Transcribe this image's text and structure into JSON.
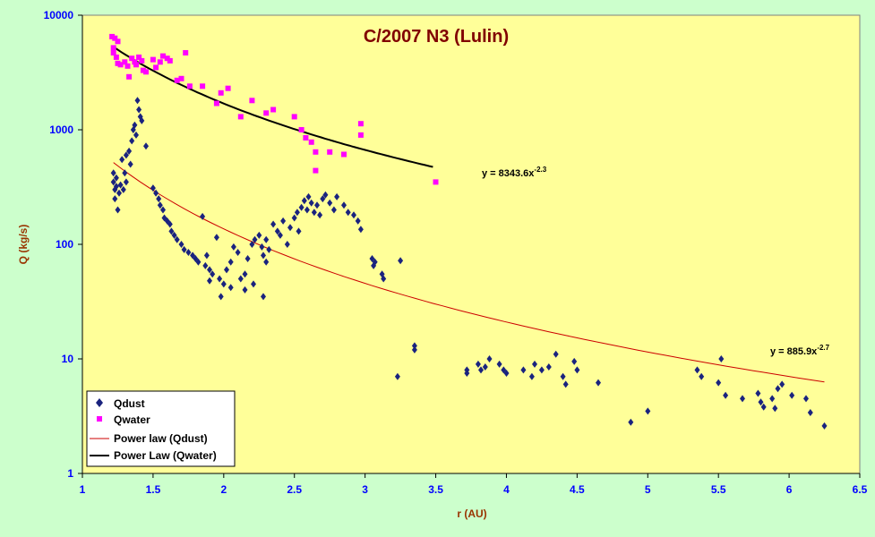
{
  "chart_data": {
    "type": "scatter",
    "title": "C/2007 N3 (Lulin)",
    "xlabel": "r (AU)",
    "ylabel": "Q (kg/s)",
    "xlim": [
      1,
      6.5
    ],
    "ylim": [
      1,
      10000
    ],
    "yscale": "log",
    "x_ticks": [
      "1",
      "1.5",
      "2",
      "2.5",
      "3",
      "3.5",
      "4",
      "4.5",
      "5",
      "5.5",
      "6",
      "6.5"
    ],
    "y_ticks": [
      "1",
      "10",
      "100",
      "1000",
      "10000"
    ],
    "grid": false,
    "legend_position": "bottom-left",
    "colors": {
      "plot_background": "#ffff99",
      "page_background": "#ccffcc",
      "qdust": "#1a237e",
      "qwater": "#ff00ff",
      "powerlaw_dust": "#cc0000",
      "powerlaw_water": "#000000"
    },
    "series": [
      {
        "name": "Qdust",
        "marker": "diamond",
        "color": "#1a237e",
        "points": [
          [
            1.22,
            420
          ],
          [
            1.22,
            350
          ],
          [
            1.23,
            300
          ],
          [
            1.23,
            250
          ],
          [
            1.24,
            380
          ],
          [
            1.24,
            320
          ],
          [
            1.25,
            200
          ],
          [
            1.26,
            280
          ],
          [
            1.27,
            330
          ],
          [
            1.28,
            550
          ],
          [
            1.29,
            300
          ],
          [
            1.3,
            420
          ],
          [
            1.31,
            350
          ],
          [
            1.31,
            600
          ],
          [
            1.33,
            650
          ],
          [
            1.34,
            500
          ],
          [
            1.35,
            800
          ],
          [
            1.36,
            1000
          ],
          [
            1.37,
            1100
          ],
          [
            1.38,
            900
          ],
          [
            1.39,
            1800
          ],
          [
            1.4,
            1500
          ],
          [
            1.41,
            1300
          ],
          [
            1.42,
            1200
          ],
          [
            1.45,
            720
          ],
          [
            1.5,
            310
          ],
          [
            1.52,
            280
          ],
          [
            1.54,
            250
          ],
          [
            1.55,
            220
          ],
          [
            1.57,
            200
          ],
          [
            1.58,
            170
          ],
          [
            1.6,
            160
          ],
          [
            1.62,
            150
          ],
          [
            1.63,
            130
          ],
          [
            1.65,
            120
          ],
          [
            1.67,
            110
          ],
          [
            1.7,
            100
          ],
          [
            1.72,
            90
          ],
          [
            1.75,
            85
          ],
          [
            1.78,
            80
          ],
          [
            1.8,
            75
          ],
          [
            1.82,
            70
          ],
          [
            1.85,
            175
          ],
          [
            1.87,
            65
          ],
          [
            1.88,
            80
          ],
          [
            1.9,
            60
          ],
          [
            1.92,
            55
          ],
          [
            1.95,
            115
          ],
          [
            1.97,
            50
          ],
          [
            2.0,
            45
          ],
          [
            2.02,
            60
          ],
          [
            2.05,
            70
          ],
          [
            2.07,
            95
          ],
          [
            2.1,
            85
          ],
          [
            2.12,
            50
          ],
          [
            2.15,
            55
          ],
          [
            2.17,
            75
          ],
          [
            2.2,
            100
          ],
          [
            2.22,
            110
          ],
          [
            2.25,
            120
          ],
          [
            2.27,
            95
          ],
          [
            2.28,
            80
          ],
          [
            2.3,
            70
          ],
          [
            2.3,
            110
          ],
          [
            2.32,
            90
          ],
          [
            2.35,
            150
          ],
          [
            2.38,
            130
          ],
          [
            2.4,
            120
          ],
          [
            2.42,
            160
          ],
          [
            2.45,
            100
          ],
          [
            2.47,
            140
          ],
          [
            2.5,
            170
          ],
          [
            2.52,
            190
          ],
          [
            2.53,
            130
          ],
          [
            2.55,
            210
          ],
          [
            2.57,
            240
          ],
          [
            2.59,
            200
          ],
          [
            2.6,
            260
          ],
          [
            2.62,
            230
          ],
          [
            2.64,
            190
          ],
          [
            2.66,
            220
          ],
          [
            2.68,
            180
          ],
          [
            2.7,
            250
          ],
          [
            2.72,
            270
          ],
          [
            2.75,
            230
          ],
          [
            2.78,
            200
          ],
          [
            2.8,
            260
          ],
          [
            2.85,
            220
          ],
          [
            2.88,
            190
          ],
          [
            2.92,
            180
          ],
          [
            2.95,
            160
          ],
          [
            2.97,
            135
          ],
          [
            1.98,
            35
          ],
          [
            2.05,
            42
          ],
          [
            2.15,
            40
          ],
          [
            2.21,
            45
          ],
          [
            2.28,
            35
          ],
          [
            1.9,
            48
          ],
          [
            3.05,
            75
          ],
          [
            3.06,
            65
          ],
          [
            3.07,
            70
          ],
          [
            3.12,
            55
          ],
          [
            3.13,
            50
          ],
          [
            3.25,
            72
          ],
          [
            3.23,
            7
          ],
          [
            3.35,
            13
          ],
          [
            3.35,
            12
          ],
          [
            3.72,
            8
          ],
          [
            3.72,
            7.5
          ],
          [
            3.8,
            9
          ],
          [
            3.82,
            8
          ],
          [
            3.85,
            8.5
          ],
          [
            3.88,
            10
          ],
          [
            3.95,
            9
          ],
          [
            3.98,
            8
          ],
          [
            4.0,
            7.5
          ],
          [
            4.12,
            8
          ],
          [
            4.18,
            7
          ],
          [
            4.2,
            9
          ],
          [
            4.25,
            8
          ],
          [
            4.3,
            8.5
          ],
          [
            4.35,
            11
          ],
          [
            4.4,
            7
          ],
          [
            4.42,
            6
          ],
          [
            4.48,
            9.5
          ],
          [
            4.5,
            8
          ],
          [
            4.65,
            6.2
          ],
          [
            4.88,
            2.8
          ],
          [
            5.0,
            3.5
          ],
          [
            5.35,
            8
          ],
          [
            5.38,
            7
          ],
          [
            5.5,
            6.2
          ],
          [
            5.52,
            10
          ],
          [
            5.55,
            4.8
          ],
          [
            5.67,
            4.5
          ],
          [
            5.78,
            5
          ],
          [
            5.8,
            4.2
          ],
          [
            5.82,
            3.8
          ],
          [
            5.88,
            4.5
          ],
          [
            5.9,
            3.7
          ],
          [
            5.92,
            5.5
          ],
          [
            5.95,
            6
          ],
          [
            6.02,
            4.8
          ],
          [
            6.12,
            4.5
          ],
          [
            6.15,
            3.4
          ],
          [
            6.25,
            2.6
          ]
        ]
      },
      {
        "name": "Qwater",
        "marker": "square",
        "color": "#ff00ff",
        "points": [
          [
            1.21,
            6500
          ],
          [
            1.22,
            5200
          ],
          [
            1.22,
            4700
          ],
          [
            1.23,
            6300
          ],
          [
            1.24,
            4300
          ],
          [
            1.25,
            3800
          ],
          [
            1.25,
            5900
          ],
          [
            1.27,
            3700
          ],
          [
            1.3,
            3900
          ],
          [
            1.32,
            3600
          ],
          [
            1.33,
            2900
          ],
          [
            1.35,
            4200
          ],
          [
            1.37,
            3900
          ],
          [
            1.38,
            3700
          ],
          [
            1.4,
            4300
          ],
          [
            1.42,
            4000
          ],
          [
            1.43,
            3300
          ],
          [
            1.45,
            3200
          ],
          [
            1.5,
            4100
          ],
          [
            1.52,
            3500
          ],
          [
            1.55,
            3900
          ],
          [
            1.57,
            4400
          ],
          [
            1.6,
            4200
          ],
          [
            1.62,
            4000
          ],
          [
            1.67,
            2700
          ],
          [
            1.7,
            2800
          ],
          [
            1.73,
            4700
          ],
          [
            1.76,
            2400
          ],
          [
            1.85,
            2400
          ],
          [
            1.95,
            1700
          ],
          [
            1.98,
            2100
          ],
          [
            2.03,
            2300
          ],
          [
            2.12,
            1300
          ],
          [
            2.2,
            1800
          ],
          [
            2.3,
            1400
          ],
          [
            2.35,
            1500
          ],
          [
            2.5,
            1300
          ],
          [
            2.55,
            1000
          ],
          [
            2.58,
            850
          ],
          [
            2.62,
            780
          ],
          [
            2.65,
            640
          ],
          [
            2.65,
            440
          ],
          [
            2.75,
            640
          ],
          [
            2.85,
            610
          ],
          [
            2.97,
            1130
          ],
          [
            2.97,
            900
          ],
          [
            3.5,
            350
          ]
        ]
      }
    ],
    "fits": [
      {
        "name": "Power law (Qdust)",
        "color": "#cc0000",
        "coef": 885.9,
        "exponent": -2.7,
        "equation_base": "y = 885.9x",
        "equation_exp": "-2.7",
        "x_range": [
          1.22,
          6.25
        ]
      },
      {
        "name": "Power Law (Qwater)",
        "color": "#000000",
        "coef": 8343.6,
        "exponent": -2.3,
        "equation_base": "y = 8343.6x",
        "equation_exp": "-2.3",
        "x_range": [
          1.22,
          3.48
        ]
      }
    ]
  }
}
